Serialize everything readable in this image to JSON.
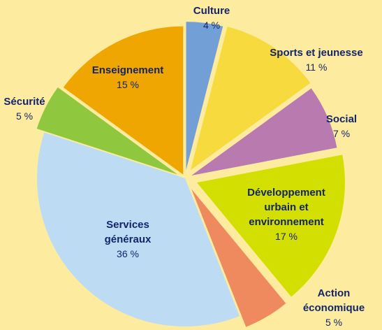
{
  "chart_data": {
    "type": "pie",
    "categories": [
      "Culture",
      "Sports et jeunesse",
      "Social",
      "Développement\nurbain et\nenvironnement",
      "Action\néconomique",
      "Services\ngénéraux",
      "Sécurité",
      "Enseignement"
    ],
    "values": [
      4,
      11,
      7,
      17,
      5,
      36,
      5,
      15
    ],
    "value_labels": [
      "4 %",
      "11 %",
      "7 %",
      "17 %",
      "5 %",
      "36 %",
      "5 %",
      "15 %"
    ],
    "colors": [
      "#72a0d6",
      "#f7da3e",
      "#b97aaf",
      "#d3df00",
      "#ef8a5f",
      "#bddcf4",
      "#8fc73e",
      "#f0a600"
    ]
  }
}
